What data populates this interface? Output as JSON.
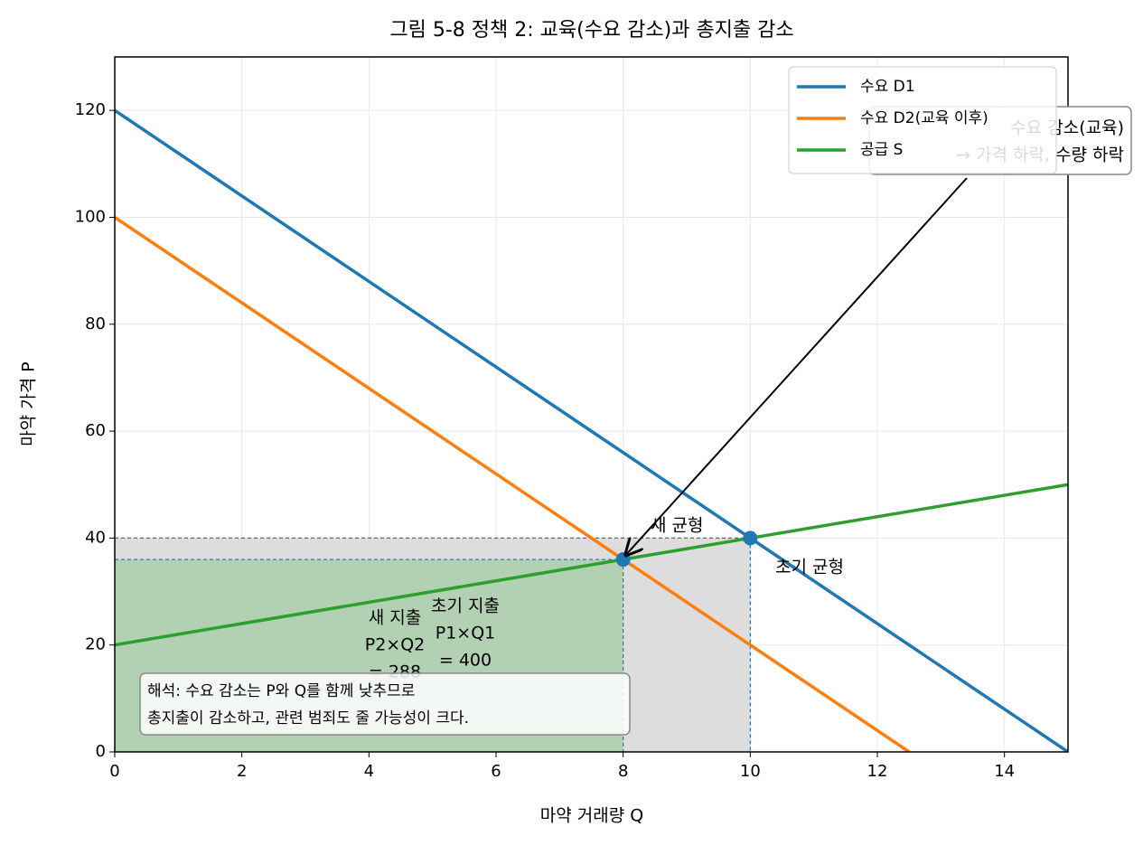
{
  "chart_data": {
    "type": "line",
    "title": "그림 5-8  정책 2: 교육(수요 감소)과 총지출 감소",
    "xlabel": "마약 거래량 Q",
    "ylabel": "마약 가격 P",
    "xlim": [
      0,
      15
    ],
    "ylim": [
      0,
      130
    ],
    "xticks": [
      0,
      2,
      4,
      6,
      8,
      10,
      12,
      14
    ],
    "yticks": [
      0,
      20,
      40,
      60,
      80,
      100,
      120
    ],
    "grid": true,
    "legend": "upper right",
    "series": [
      {
        "name": "수요 D1",
        "color": "#1f77b4",
        "x": [
          0,
          15
        ],
        "values": [
          120,
          0
        ]
      },
      {
        "name": "수요 D2(교육 이후)",
        "color": "#ff7f0e",
        "x": [
          0,
          12.5
        ],
        "values": [
          100,
          0
        ]
      },
      {
        "name": "공급 S",
        "color": "#2ca02c",
        "x": [
          0,
          15
        ],
        "values": [
          20,
          50
        ]
      }
    ],
    "regions": [
      {
        "label": [
          "초기 지출",
          "P1×Q1",
          "= 400"
        ],
        "x": 10,
        "y": 40,
        "color": "#dddddd"
      },
      {
        "label": [
          "새 지출",
          "P2×Q2",
          "= 288"
        ],
        "x": 8,
        "y": 36,
        "color": "#b2d0b2"
      }
    ],
    "points": [
      {
        "label": "초기 균형",
        "x": 10,
        "y": 40
      },
      {
        "label": "새 균형",
        "x": 8,
        "y": 36
      }
    ],
    "point_color": "#1f77b4",
    "arrow_note": [
      "수요 감소(교육)",
      "→ 가격 하락, 수량 하락"
    ],
    "note": [
      "해석: 수요 감소는 P와 Q를 함께 낮추므로",
      "총지출이 감소하고, 관련 범죄도 줄 가능성이 크다."
    ]
  }
}
